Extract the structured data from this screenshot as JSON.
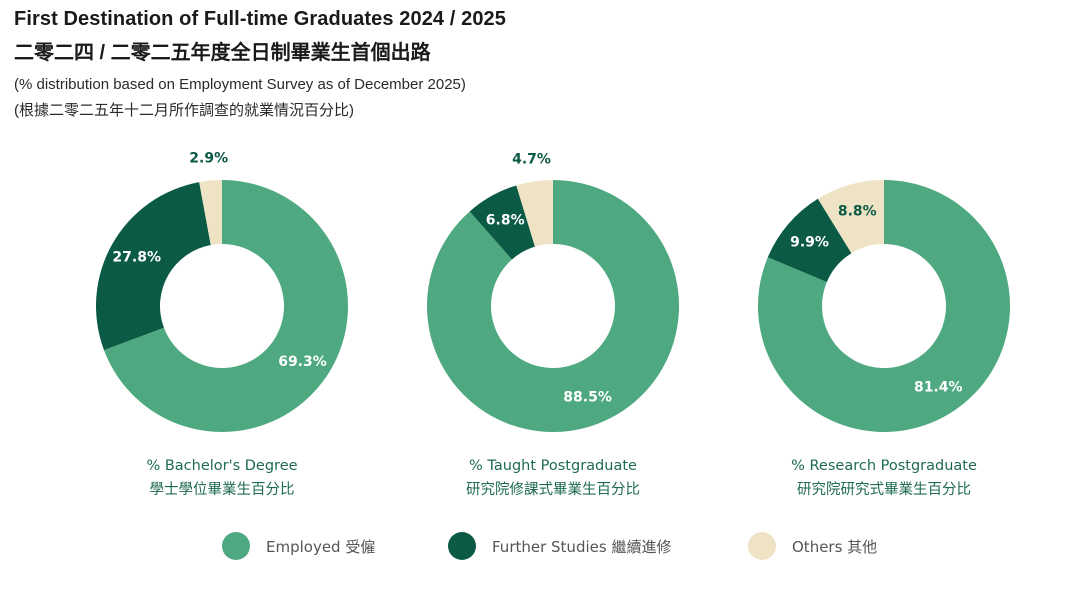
{
  "header": {
    "title_en": "First Destination of Full-time Graduates 2024 / 2025",
    "title_zh": "二零二四 / 二零二五年度全日制畢業生首個出路",
    "subtitle_en": "(% distribution based on Employment Survey as of December 2025)",
    "subtitle_zh": "(根據二零二五年十二月所作調查的就業情況百分比)"
  },
  "colors": {
    "employed": "#4ea980",
    "further_studies": "#0b5a45",
    "others": "#efe3c6"
  },
  "legend": [
    {
      "key": "employed",
      "label": "Employed 受僱"
    },
    {
      "key": "further_studies",
      "label": "Further Studies 繼續進修"
    },
    {
      "key": "others",
      "label": "Others 其他"
    }
  ],
  "chart_data": [
    {
      "type": "pie",
      "variant": "donut",
      "caption_en": "% Bachelor's Degree",
      "caption_zh": "學士學位畢業生百分比",
      "slices": [
        {
          "name": "Employed 受僱",
          "key": "employed",
          "value": 69.3,
          "label": "69.3%"
        },
        {
          "name": "Further Studies 繼續進修",
          "key": "further_studies",
          "value": 27.8,
          "label": "27.8%"
        },
        {
          "name": "Others 其他",
          "key": "others",
          "value": 2.9,
          "label": "2.9%"
        }
      ]
    },
    {
      "type": "pie",
      "variant": "donut",
      "caption_en": "% Taught Postgraduate",
      "caption_zh": "研究院修課式畢業生百分比",
      "slices": [
        {
          "name": "Employed 受僱",
          "key": "employed",
          "value": 88.5,
          "label": "88.5%"
        },
        {
          "name": "Further Studies 繼續進修",
          "key": "further_studies",
          "value": 6.8,
          "label": "6.8%"
        },
        {
          "name": "Others 其他",
          "key": "others",
          "value": 4.7,
          "label": "4.7%"
        }
      ]
    },
    {
      "type": "pie",
      "variant": "donut",
      "caption_en": "% Research Postgraduate",
      "caption_zh": "研究院研究式畢業生百分比",
      "slices": [
        {
          "name": "Employed 受僱",
          "key": "employed",
          "value": 81.4,
          "label": "81.4%"
        },
        {
          "name": "Further Studies 繼續進修",
          "key": "further_studies",
          "value": 9.9,
          "label": "9.9%"
        },
        {
          "name": "Others 其他",
          "key": "others",
          "value": 8.8,
          "label": "8.8%"
        }
      ]
    }
  ]
}
